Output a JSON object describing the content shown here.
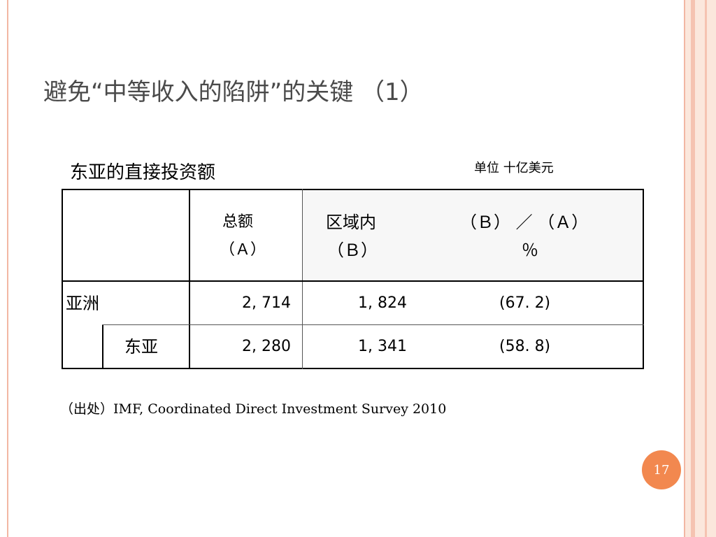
{
  "slide": {
    "title": "避免“中等收入的陷阱”的关键 （1）",
    "subtitle": "东亚的直接投资额",
    "unit": "单位 十亿美元",
    "source": "（出处）IMF, Coordinated Direct Investment Survey 2010",
    "page_number": "17"
  },
  "table": {
    "headers": {
      "total_line1": "总额",
      "total_line2": "（Ａ）",
      "intra_line1": "区域内",
      "intra_line2": "（Ｂ）",
      "ratio_line1": "（Ｂ） ／ （Ａ）",
      "ratio_line2": "％"
    },
    "rows": [
      {
        "label": "亚洲",
        "total": "2, 714",
        "intra": "1, 824",
        "ratio": "(67. 2)"
      },
      {
        "label": "东亚",
        "total": "2, 280",
        "intra": "1, 341",
        "ratio": "(58. 8)"
      }
    ]
  },
  "colors": {
    "frame": "#f2b7a3",
    "badge": "#f2884f",
    "title": "#4a4a4a"
  }
}
